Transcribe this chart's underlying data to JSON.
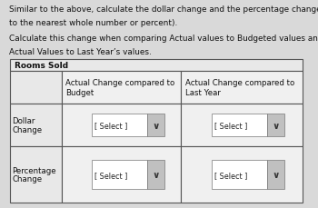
{
  "bg_color": "#d9d9d9",
  "table_bg": "#f0f0f0",
  "cell_bg": "#f0f0f0",
  "label_bg": "#e8e8e8",
  "header_top_bg": "#f0f0f0",
  "border_color": "#555555",
  "text_color": "#111111",
  "title_line1": "Similar to the above, calculate the dollar change and the percentage change for Rooms Sold. (Round",
  "title_line2": "to the nearest whole number or percent).",
  "subtitle_line1": "Calculate this change when comparing Actual values to Budgeted values and when comparing",
  "subtitle_line2": "Actual Values to Last Year’s values.",
  "table_title": "Rooms Sold",
  "col1_header_line1": "Actual Change compared to",
  "col1_header_line2": "Budget",
  "col2_header_line1": "Actual Change compared to",
  "col2_header_line2": "Last Year",
  "row1_label_line1": "Dollar",
  "row1_label_line2": "Change",
  "row2_label_line1": "Percentage",
  "row2_label_line2": "Change",
  "select_text": "[ Select ]",
  "title_fontsize": 6.4,
  "cell_fontsize": 6.2,
  "dropdown_fontsize": 5.8
}
